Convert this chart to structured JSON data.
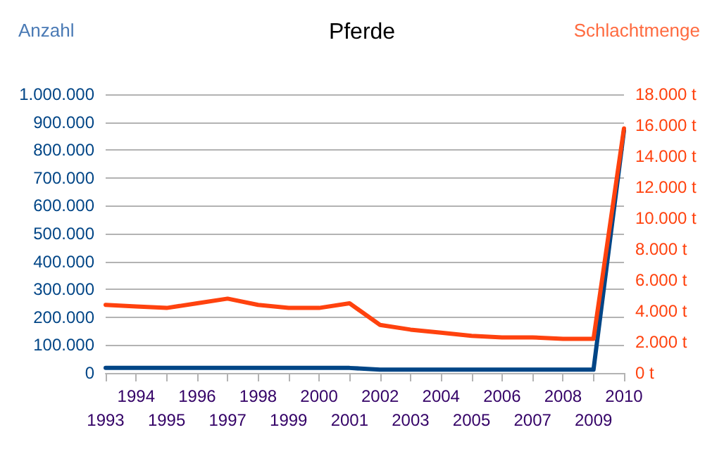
{
  "chart_data": {
    "type": "line",
    "title": "Pferde",
    "ylabel": "Anzahl",
    "y2label": "Schlachtmenge",
    "categories": [
      "1993",
      "1994",
      "1995",
      "1996",
      "1997",
      "1998",
      "1999",
      "2000",
      "2001",
      "2002",
      "2003",
      "2004",
      "2005",
      "2006",
      "2007",
      "2008",
      "2009",
      "2010"
    ],
    "series": [
      {
        "color": "#004586",
        "values": [
          18000,
          18000,
          18000,
          18000,
          18000,
          18000,
          18000,
          18000,
          18000,
          12000,
          12000,
          12000,
          12000,
          12000,
          12000,
          12000,
          12000,
          870000
        ]
      },
      {
        "color": "#ff420e",
        "axis": "y2",
        "values": [
          4400,
          4300,
          4200,
          4500,
          4800,
          4400,
          4200,
          4200,
          4500,
          3100,
          2800,
          2600,
          2400,
          2300,
          2300,
          2200,
          2200,
          15800
        ]
      }
    ],
    "ylim": [
      0,
      1000000
    ],
    "yticks": [
      {
        "value": 0,
        "label": "0"
      },
      {
        "value": 100000,
        "label": "100.000"
      },
      {
        "value": 200000,
        "label": "200.000"
      },
      {
        "value": 300000,
        "label": "300.000"
      },
      {
        "value": 400000,
        "label": "400.000"
      },
      {
        "value": 500000,
        "label": "500.000"
      },
      {
        "value": 600000,
        "label": "600.000"
      },
      {
        "value": 700000,
        "label": "700.000"
      },
      {
        "value": 800000,
        "label": "800.000"
      },
      {
        "value": 900000,
        "label": "900.000"
      },
      {
        "value": 1000000,
        "label": "1.000.000"
      }
    ],
    "y2lim": [
      0,
      18000
    ],
    "y2ticks": [
      {
        "value": 0,
        "label": "0 t"
      },
      {
        "value": 2000,
        "label": "2.000 t"
      },
      {
        "value": 4000,
        "label": "4.000 t"
      },
      {
        "value": 6000,
        "label": "6.000 t"
      },
      {
        "value": 8000,
        "label": "8.000 t"
      },
      {
        "value": 10000,
        "label": "10.000 t"
      },
      {
        "value": 12000,
        "label": "12.000 t"
      },
      {
        "value": 14000,
        "label": "14.000 t"
      },
      {
        "value": 16000,
        "label": "16.000 t"
      },
      {
        "value": 18000,
        "label": "18.000 t"
      }
    ],
    "grid": "y",
    "marker": "none",
    "line_style": "solid"
  }
}
